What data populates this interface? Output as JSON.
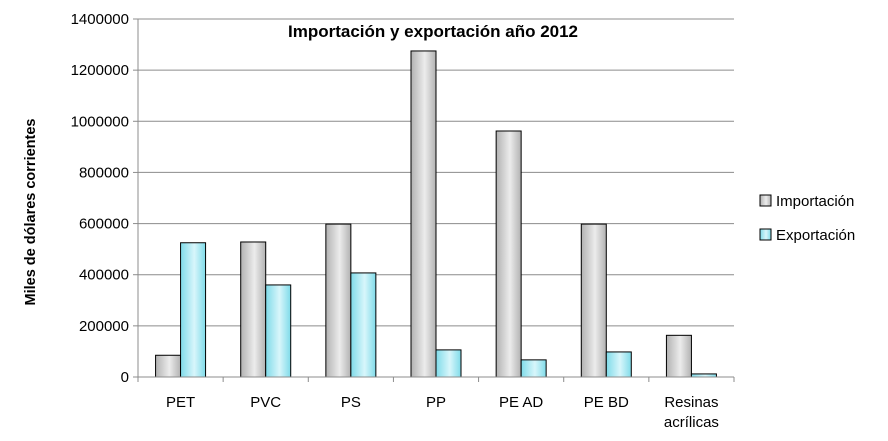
{
  "chart_data": {
    "type": "bar",
    "title": "Importación y exportación año 2012",
    "ylabel": "Miles de dólares corrientes",
    "xlabel": "",
    "ylim": [
      0,
      1400000
    ],
    "yticks": [
      "0",
      "200000",
      "400000",
      "600000",
      "800000",
      "1000000",
      "1200000",
      "1400000"
    ],
    "yticks_values": [
      0,
      200000,
      400000,
      600000,
      800000,
      1000000,
      1200000,
      1400000
    ],
    "categories": [
      [
        "PET"
      ],
      [
        "PVC"
      ],
      [
        "PS"
      ],
      [
        "PP"
      ],
      [
        "PE AD"
      ],
      [
        "PE BD"
      ],
      [
        "Resinas",
        "acrílicas"
      ]
    ],
    "series": [
      {
        "name": "Importación",
        "values": [
          85000,
          528000,
          598000,
          1275000,
          962000,
          598000,
          163000
        ]
      },
      {
        "name": "Exportación",
        "values": [
          525000,
          360000,
          407000,
          106000,
          67000,
          98000,
          12000
        ]
      }
    ],
    "grid": true,
    "legend_position": "right",
    "colors": {
      "importacion_light": "#ececec",
      "importacion_dark": "#b2b2b2",
      "exportacion_light": "#d8f6fb",
      "exportacion_dark": "#7fdbe9",
      "grid": "#8c8c8c",
      "axis": "#8c8c8c"
    }
  }
}
